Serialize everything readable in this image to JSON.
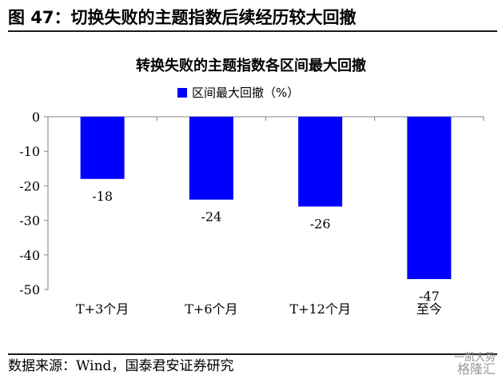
{
  "figure": {
    "caption": "图 47：切换失败的主题指数后续经历较大回撤",
    "source": "数据来源：Wind，国泰君安证券研究",
    "watermark_top": "一凯大势",
    "watermark_brand": "格隆汇"
  },
  "chart_data": {
    "type": "bar",
    "title": "转换失败的主题指数各区间最大回撤",
    "categories": [
      "T+3个月",
      "T+6个月",
      "T+12个月",
      "至今"
    ],
    "series": [
      {
        "name": "区间最大回撤（%）",
        "values": [
          -18,
          -24,
          -26,
          -47
        ],
        "data_labels": [
          "-18",
          "-24",
          "-26",
          "-47"
        ]
      }
    ],
    "ylim": [
      -50,
      0
    ],
    "yticks": [
      0,
      -10,
      -20,
      -30,
      -40,
      -50
    ],
    "ytick_labels": [
      "0",
      "-10",
      "-20",
      "-30",
      "-40",
      "-50"
    ],
    "xlabel": "",
    "ylabel": "",
    "grid": false,
    "legend": "top-center",
    "colors": {
      "bar": "#0000ff",
      "axis": "#808080",
      "text": "#000000"
    }
  }
}
